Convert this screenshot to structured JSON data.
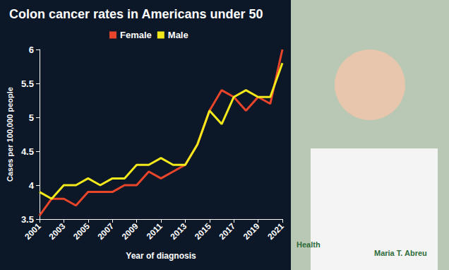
{
  "chart_data": {
    "type": "line",
    "title": "Colon cancer rates in Americans under 50",
    "x_label": "Year of diagnosis",
    "y_label": "Cases per 100,000 people",
    "x": [
      2001,
      2002,
      2003,
      2004,
      2005,
      2006,
      2007,
      2008,
      2009,
      2010,
      2011,
      2012,
      2013,
      2014,
      2015,
      2016,
      2017,
      2018,
      2019,
      2020,
      2021
    ],
    "series": [
      {
        "name": "Female",
        "color": "#e8452a",
        "values": [
          3.55,
          3.8,
          3.8,
          3.7,
          3.9,
          3.9,
          3.9,
          4.0,
          4.0,
          4.2,
          4.1,
          4.2,
          4.3,
          4.6,
          5.1,
          5.4,
          5.3,
          5.1,
          5.3,
          5.2,
          6.0
        ]
      },
      {
        "name": "Male",
        "color": "#f2e81a",
        "values": [
          3.9,
          3.8,
          4.0,
          4.0,
          4.1,
          4.0,
          4.1,
          4.1,
          4.3,
          4.3,
          4.4,
          4.3,
          4.3,
          4.6,
          5.1,
          4.9,
          5.3,
          5.4,
          5.3,
          5.3,
          5.8
        ]
      }
    ],
    "xlim": [
      2001,
      2021
    ],
    "xticks": [
      2001,
      2003,
      2005,
      2007,
      2009,
      2011,
      2013,
      2015,
      2017,
      2019,
      2021
    ],
    "ylim": [
      3.5,
      6
    ],
    "yticks": [
      3.5,
      4,
      4.5,
      5,
      5.5,
      6
    ],
    "grid": false,
    "legend": "top",
    "annotations": [
      "Health",
      "Maria T. Abreu"
    ]
  }
}
